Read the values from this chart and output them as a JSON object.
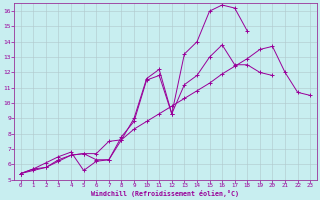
{
  "xlabel": "Windchill (Refroidissement éolien,°C)",
  "background_color": "#c8eef0",
  "grid_color": "#b0c8cc",
  "line_color": "#990099",
  "spine_color": "#993399",
  "xlim": [
    -0.5,
    23.5
  ],
  "ylim": [
    5,
    16.5
  ],
  "xticks": [
    0,
    1,
    2,
    3,
    4,
    5,
    6,
    7,
    8,
    9,
    10,
    11,
    12,
    13,
    14,
    15,
    16,
    17,
    18,
    19,
    20,
    21,
    22,
    23
  ],
  "yticks": [
    5,
    6,
    7,
    8,
    9,
    10,
    11,
    12,
    13,
    14,
    15,
    16
  ],
  "line1_y": [
    5.4,
    5.7,
    5.8,
    6.3,
    6.6,
    6.7,
    6.3,
    6.3,
    7.8,
    8.8,
    11.5,
    11.8,
    9.3,
    11.2,
    11.8,
    13.0,
    13.8,
    12.5,
    12.5,
    12.0,
    11.8,
    null,
    null,
    null
  ],
  "line2_y": [
    5.4,
    5.7,
    6.1,
    6.5,
    6.8,
    5.6,
    6.2,
    6.3,
    7.6,
    9.0,
    11.6,
    12.2,
    9.3,
    13.2,
    14.0,
    16.0,
    16.4,
    16.2,
    14.7,
    null,
    null,
    null,
    null,
    null
  ],
  "line3_y": [
    5.4,
    5.6,
    5.8,
    6.2,
    6.6,
    6.7,
    6.7,
    7.5,
    7.6,
    8.3,
    8.8,
    9.3,
    9.8,
    10.3,
    10.8,
    11.3,
    11.9,
    12.4,
    12.9,
    13.5,
    13.7,
    12.0,
    10.7,
    10.5
  ]
}
